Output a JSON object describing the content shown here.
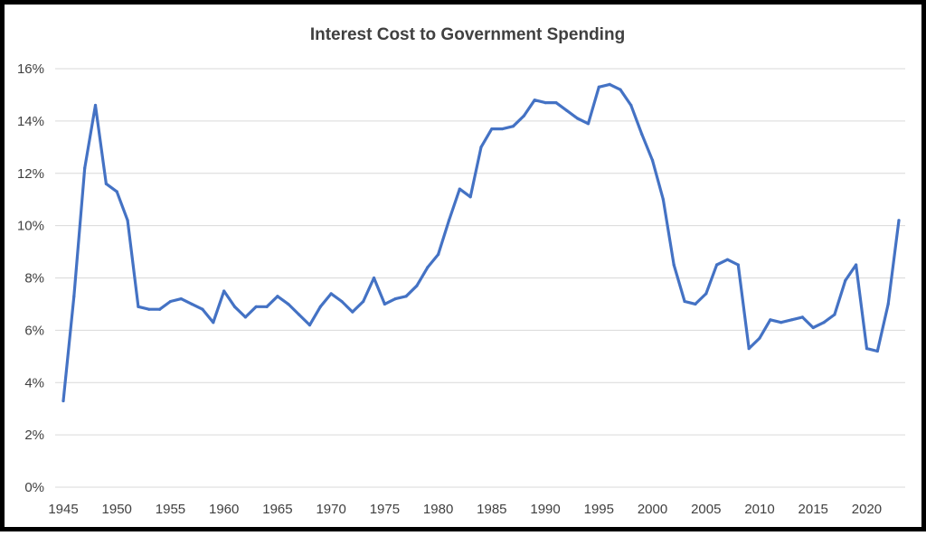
{
  "chart_data": {
    "type": "line",
    "title": "Interest Cost to Government Spending",
    "xlabel": "",
    "ylabel": "",
    "xlim": [
      1945,
      2023
    ],
    "ylim": [
      0,
      16
    ],
    "grid": true,
    "legend": "none",
    "x_ticks": [
      "1945",
      "1950",
      "1955",
      "1960",
      "1965",
      "1970",
      "1975",
      "1980",
      "1985",
      "1990",
      "1995",
      "2000",
      "2005",
      "2010",
      "2015",
      "2020"
    ],
    "y_ticks": [
      "0%",
      "2%",
      "4%",
      "6%",
      "8%",
      "10%",
      "12%",
      "14%",
      "16%"
    ],
    "series": [
      {
        "color": "#4472c4",
        "x": [
          1945,
          1946,
          1947,
          1948,
          1949,
          1950,
          1951,
          1952,
          1953,
          1954,
          1955,
          1956,
          1957,
          1958,
          1959,
          1960,
          1961,
          1962,
          1963,
          1964,
          1965,
          1966,
          1967,
          1968,
          1969,
          1970,
          1971,
          1972,
          1973,
          1974,
          1975,
          1976,
          1977,
          1978,
          1979,
          1980,
          1981,
          1982,
          1983,
          1984,
          1985,
          1986,
          1987,
          1988,
          1989,
          1990,
          1991,
          1992,
          1993,
          1994,
          1995,
          1996,
          1997,
          1998,
          1999,
          2000,
          2001,
          2002,
          2003,
          2004,
          2005,
          2006,
          2007,
          2008,
          2009,
          2010,
          2011,
          2012,
          2013,
          2014,
          2015,
          2016,
          2017,
          2018,
          2019,
          2020,
          2021,
          2022,
          2023
        ],
        "y": [
          3.3,
          7.3,
          12.2,
          14.6,
          11.6,
          11.3,
          10.2,
          6.9,
          6.8,
          6.8,
          7.1,
          7.2,
          7.0,
          6.8,
          6.3,
          7.5,
          6.9,
          6.5,
          6.9,
          6.9,
          7.3,
          7.0,
          6.6,
          6.2,
          6.9,
          7.4,
          7.1,
          6.7,
          7.1,
          8.0,
          7.0,
          7.2,
          7.3,
          7.7,
          8.4,
          8.9,
          10.2,
          11.4,
          11.1,
          13.0,
          13.7,
          13.7,
          13.8,
          14.2,
          14.8,
          14.7,
          14.7,
          14.4,
          14.1,
          13.9,
          15.3,
          15.4,
          15.2,
          14.6,
          13.5,
          12.5,
          11.0,
          8.5,
          7.1,
          7.0,
          7.4,
          8.5,
          8.7,
          8.5,
          5.3,
          5.7,
          6.4,
          6.3,
          6.4,
          6.5,
          6.1,
          6.3,
          6.6,
          7.9,
          8.5,
          5.3,
          5.2,
          7.0,
          10.2
        ]
      }
    ]
  }
}
